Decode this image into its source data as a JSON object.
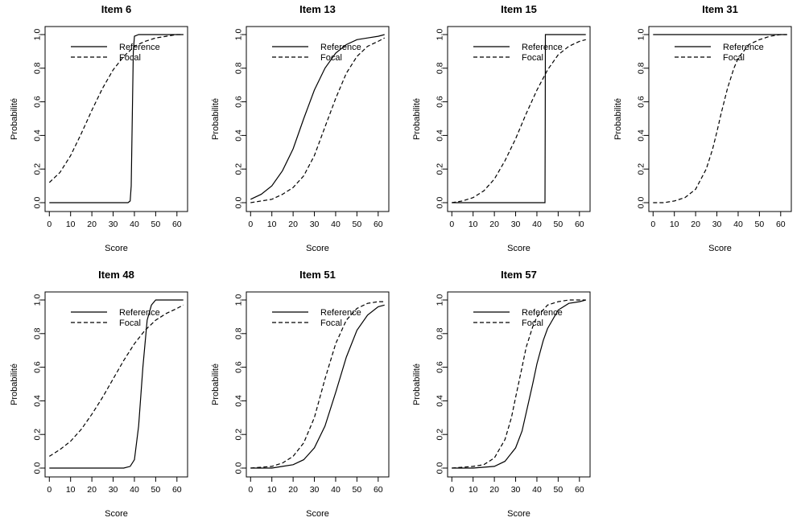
{
  "chart_data": [
    {
      "type": "line",
      "title": "Item 6",
      "xlabel": "Score",
      "ylabel": "Probabilité",
      "xlim": [
        -2,
        65
      ],
      "ylim": [
        0,
        1
      ],
      "xticks": [
        "0",
        "10",
        "20",
        "30",
        "40",
        "50",
        "60"
      ],
      "yticks": [
        "0.0",
        "0.2",
        "0.4",
        "0.6",
        "0.8",
        "1.0"
      ],
      "legend": {
        "position": "top",
        "entries": [
          "Reference",
          "Focal"
        ]
      },
      "series": [
        {
          "name": "Reference",
          "style": "solid",
          "x": [
            0,
            10,
            20,
            30,
            35,
            37,
            38,
            38.5,
            39,
            39.5,
            40,
            42,
            45,
            50,
            55,
            60,
            63
          ],
          "y": [
            0,
            0,
            0,
            0,
            0,
            0,
            0.01,
            0.1,
            0.5,
            0.9,
            0.99,
            1,
            1,
            1,
            1,
            1,
            1
          ]
        },
        {
          "name": "Focal",
          "style": "dashed",
          "x": [
            0,
            5,
            10,
            15,
            20,
            25,
            30,
            35,
            40,
            45,
            50,
            55,
            60,
            63
          ],
          "y": [
            0.12,
            0.18,
            0.28,
            0.41,
            0.55,
            0.68,
            0.79,
            0.87,
            0.93,
            0.96,
            0.98,
            0.99,
            1.0,
            1.0
          ]
        }
      ]
    },
    {
      "type": "line",
      "title": "Item 13",
      "xlabel": "Score",
      "ylabel": "Probabilité",
      "xlim": [
        -2,
        65
      ],
      "ylim": [
        0,
        1
      ],
      "xticks": [
        "0",
        "10",
        "20",
        "30",
        "40",
        "50",
        "60"
      ],
      "yticks": [
        "0.0",
        "0.2",
        "0.4",
        "0.6",
        "0.8",
        "1.0"
      ],
      "legend": {
        "position": "top",
        "entries": [
          "Reference",
          "Focal"
        ]
      },
      "series": [
        {
          "name": "Reference",
          "style": "solid",
          "x": [
            0,
            5,
            10,
            15,
            20,
            25,
            30,
            35,
            40,
            45,
            50,
            55,
            60,
            63
          ],
          "y": [
            0.02,
            0.05,
            0.1,
            0.19,
            0.32,
            0.5,
            0.67,
            0.8,
            0.89,
            0.94,
            0.97,
            0.98,
            0.99,
            1.0
          ]
        },
        {
          "name": "Focal",
          "style": "dashed",
          "x": [
            0,
            5,
            10,
            15,
            20,
            25,
            30,
            35,
            40,
            45,
            50,
            55,
            60,
            63
          ],
          "y": [
            0,
            0.01,
            0.02,
            0.05,
            0.09,
            0.16,
            0.28,
            0.45,
            0.62,
            0.77,
            0.87,
            0.93,
            0.96,
            0.98
          ]
        }
      ]
    },
    {
      "type": "line",
      "title": "Item 15",
      "xlabel": "Score",
      "ylabel": "Probabilité",
      "xlim": [
        -2,
        65
      ],
      "ylim": [
        0,
        1
      ],
      "xticks": [
        "0",
        "10",
        "20",
        "30",
        "40",
        "50",
        "60"
      ],
      "yticks": [
        "0.0",
        "0.2",
        "0.4",
        "0.6",
        "0.8",
        "1.0"
      ],
      "legend": {
        "position": "top",
        "entries": [
          "Reference",
          "Focal"
        ]
      },
      "series": [
        {
          "name": "Reference",
          "style": "solid",
          "x": [
            0,
            20,
            43.8,
            43.9,
            44,
            50,
            63
          ],
          "y": [
            0,
            0,
            0,
            0.5,
            1,
            1,
            1
          ]
        },
        {
          "name": "Focal",
          "style": "dashed",
          "x": [
            0,
            5,
            10,
            15,
            20,
            25,
            30,
            35,
            40,
            45,
            50,
            55,
            60,
            63
          ],
          "y": [
            0,
            0.01,
            0.03,
            0.07,
            0.14,
            0.25,
            0.38,
            0.53,
            0.67,
            0.79,
            0.88,
            0.93,
            0.96,
            0.97
          ]
        }
      ]
    },
    {
      "type": "line",
      "title": "Item 31",
      "xlabel": "Score",
      "ylabel": "Probabilité",
      "xlim": [
        -2,
        65
      ],
      "ylim": [
        0,
        1
      ],
      "xticks": [
        "0",
        "10",
        "20",
        "30",
        "40",
        "50",
        "60"
      ],
      "yticks": [
        "0.0",
        "0.2",
        "0.4",
        "0.6",
        "0.8",
        "1.0"
      ],
      "legend": {
        "position": "top",
        "entries": [
          "Reference",
          "Focal"
        ]
      },
      "series": [
        {
          "name": "Reference",
          "style": "solid",
          "x": [
            0,
            63
          ],
          "y": [
            1,
            1
          ]
        },
        {
          "name": "Focal",
          "style": "dashed",
          "x": [
            0,
            5,
            10,
            15,
            20,
            25,
            28,
            30,
            32,
            35,
            38,
            40,
            45,
            50,
            55,
            60,
            63
          ],
          "y": [
            0,
            0,
            0.01,
            0.03,
            0.08,
            0.2,
            0.32,
            0.42,
            0.53,
            0.68,
            0.8,
            0.86,
            0.94,
            0.97,
            0.99,
            1.0,
            1.0
          ]
        }
      ]
    },
    {
      "type": "line",
      "title": "Item 48",
      "xlabel": "Score",
      "ylabel": "Probabilité",
      "xlim": [
        -2,
        65
      ],
      "ylim": [
        0,
        1
      ],
      "xticks": [
        "0",
        "10",
        "20",
        "30",
        "40",
        "50",
        "60"
      ],
      "yticks": [
        "0.0",
        "0.2",
        "0.4",
        "0.6",
        "0.8",
        "1.0"
      ],
      "legend": {
        "position": "top",
        "entries": [
          "Reference",
          "Focal"
        ]
      },
      "series": [
        {
          "name": "Reference",
          "style": "solid",
          "x": [
            0,
            20,
            35,
            38,
            40,
            42,
            44,
            46,
            48,
            50,
            55,
            63
          ],
          "y": [
            0,
            0,
            0,
            0.01,
            0.05,
            0.25,
            0.6,
            0.88,
            0.97,
            1,
            1,
            1
          ]
        },
        {
          "name": "Focal",
          "style": "dashed",
          "x": [
            0,
            5,
            10,
            15,
            20,
            25,
            30,
            35,
            40,
            45,
            50,
            55,
            60,
            63
          ],
          "y": [
            0.07,
            0.11,
            0.16,
            0.23,
            0.32,
            0.42,
            0.53,
            0.64,
            0.74,
            0.82,
            0.88,
            0.92,
            0.95,
            0.97
          ]
        }
      ]
    },
    {
      "type": "line",
      "title": "Item 51",
      "xlabel": "Score",
      "ylabel": "Probabilité",
      "xlim": [
        -2,
        65
      ],
      "ylim": [
        0,
        1
      ],
      "xticks": [
        "0",
        "10",
        "20",
        "30",
        "40",
        "50",
        "60"
      ],
      "yticks": [
        "0.0",
        "0.2",
        "0.4",
        "0.6",
        "0.8",
        "1.0"
      ],
      "legend": {
        "position": "top",
        "entries": [
          "Reference",
          "Focal"
        ]
      },
      "series": [
        {
          "name": "Reference",
          "style": "solid",
          "x": [
            0,
            10,
            15,
            20,
            25,
            30,
            35,
            40,
            45,
            50,
            55,
            60,
            63
          ],
          "y": [
            0,
            0,
            0.01,
            0.02,
            0.05,
            0.12,
            0.25,
            0.45,
            0.66,
            0.82,
            0.91,
            0.96,
            0.97
          ]
        },
        {
          "name": "Focal",
          "style": "dashed",
          "x": [
            0,
            10,
            15,
            20,
            25,
            30,
            35,
            40,
            45,
            50,
            55,
            60,
            63
          ],
          "y": [
            0,
            0.01,
            0.03,
            0.07,
            0.15,
            0.3,
            0.53,
            0.74,
            0.88,
            0.95,
            0.98,
            0.99,
            0.99
          ]
        }
      ]
    },
    {
      "type": "line",
      "title": "Item 57",
      "xlabel": "Score",
      "ylabel": "Probabilité",
      "xlim": [
        -2,
        65
      ],
      "ylim": [
        0,
        1
      ],
      "xticks": [
        "0",
        "10",
        "20",
        "30",
        "40",
        "50",
        "60"
      ],
      "yticks": [
        "0.0",
        "0.2",
        "0.4",
        "0.6",
        "0.8",
        "1.0"
      ],
      "legend": {
        "position": "top",
        "entries": [
          "Reference",
          "Focal"
        ]
      },
      "series": [
        {
          "name": "Reference",
          "style": "solid",
          "x": [
            0,
            10,
            20,
            25,
            30,
            33,
            35,
            38,
            40,
            43,
            45,
            50,
            55,
            60,
            63
          ],
          "y": [
            0,
            0,
            0.01,
            0.04,
            0.12,
            0.22,
            0.33,
            0.5,
            0.62,
            0.76,
            0.83,
            0.94,
            0.98,
            0.99,
            1.0
          ]
        },
        {
          "name": "Focal",
          "style": "dashed",
          "x": [
            0,
            10,
            15,
            20,
            25,
            28,
            30,
            33,
            35,
            38,
            40,
            45,
            50,
            55,
            60,
            63
          ],
          "y": [
            0,
            0.01,
            0.02,
            0.06,
            0.17,
            0.3,
            0.42,
            0.6,
            0.72,
            0.84,
            0.9,
            0.97,
            0.99,
            1.0,
            1.0,
            1.0
          ]
        }
      ]
    }
  ]
}
